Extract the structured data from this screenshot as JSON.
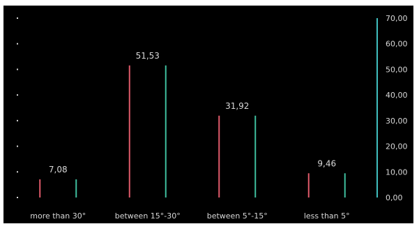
{
  "chart_data": {
    "type": "bar",
    "categories": [
      "more than 30°",
      "between 15°-30°",
      "between 5°-15°",
      "less than 5°"
    ],
    "values": [
      7.08,
      51.53,
      31.92,
      9.46
    ],
    "value_labels": [
      "7,08",
      "51,53",
      "31,92",
      "9,46"
    ],
    "y_ticks": [
      "0,00",
      "10,00",
      "20,00",
      "30,00",
      "40,00",
      "50,00",
      "60,00",
      "70,00"
    ],
    "ylim": [
      0,
      70
    ],
    "title": "",
    "xlabel": "",
    "ylabel": "",
    "axis_position": "right",
    "bar_style": "outline",
    "grid": false,
    "colors": {
      "background": "#000000",
      "bar_edge_left": "#e05a6a",
      "bar_edge_right": "#3fbf9f",
      "text": "#d8d8d8",
      "axis": "#3fbfbf"
    }
  }
}
